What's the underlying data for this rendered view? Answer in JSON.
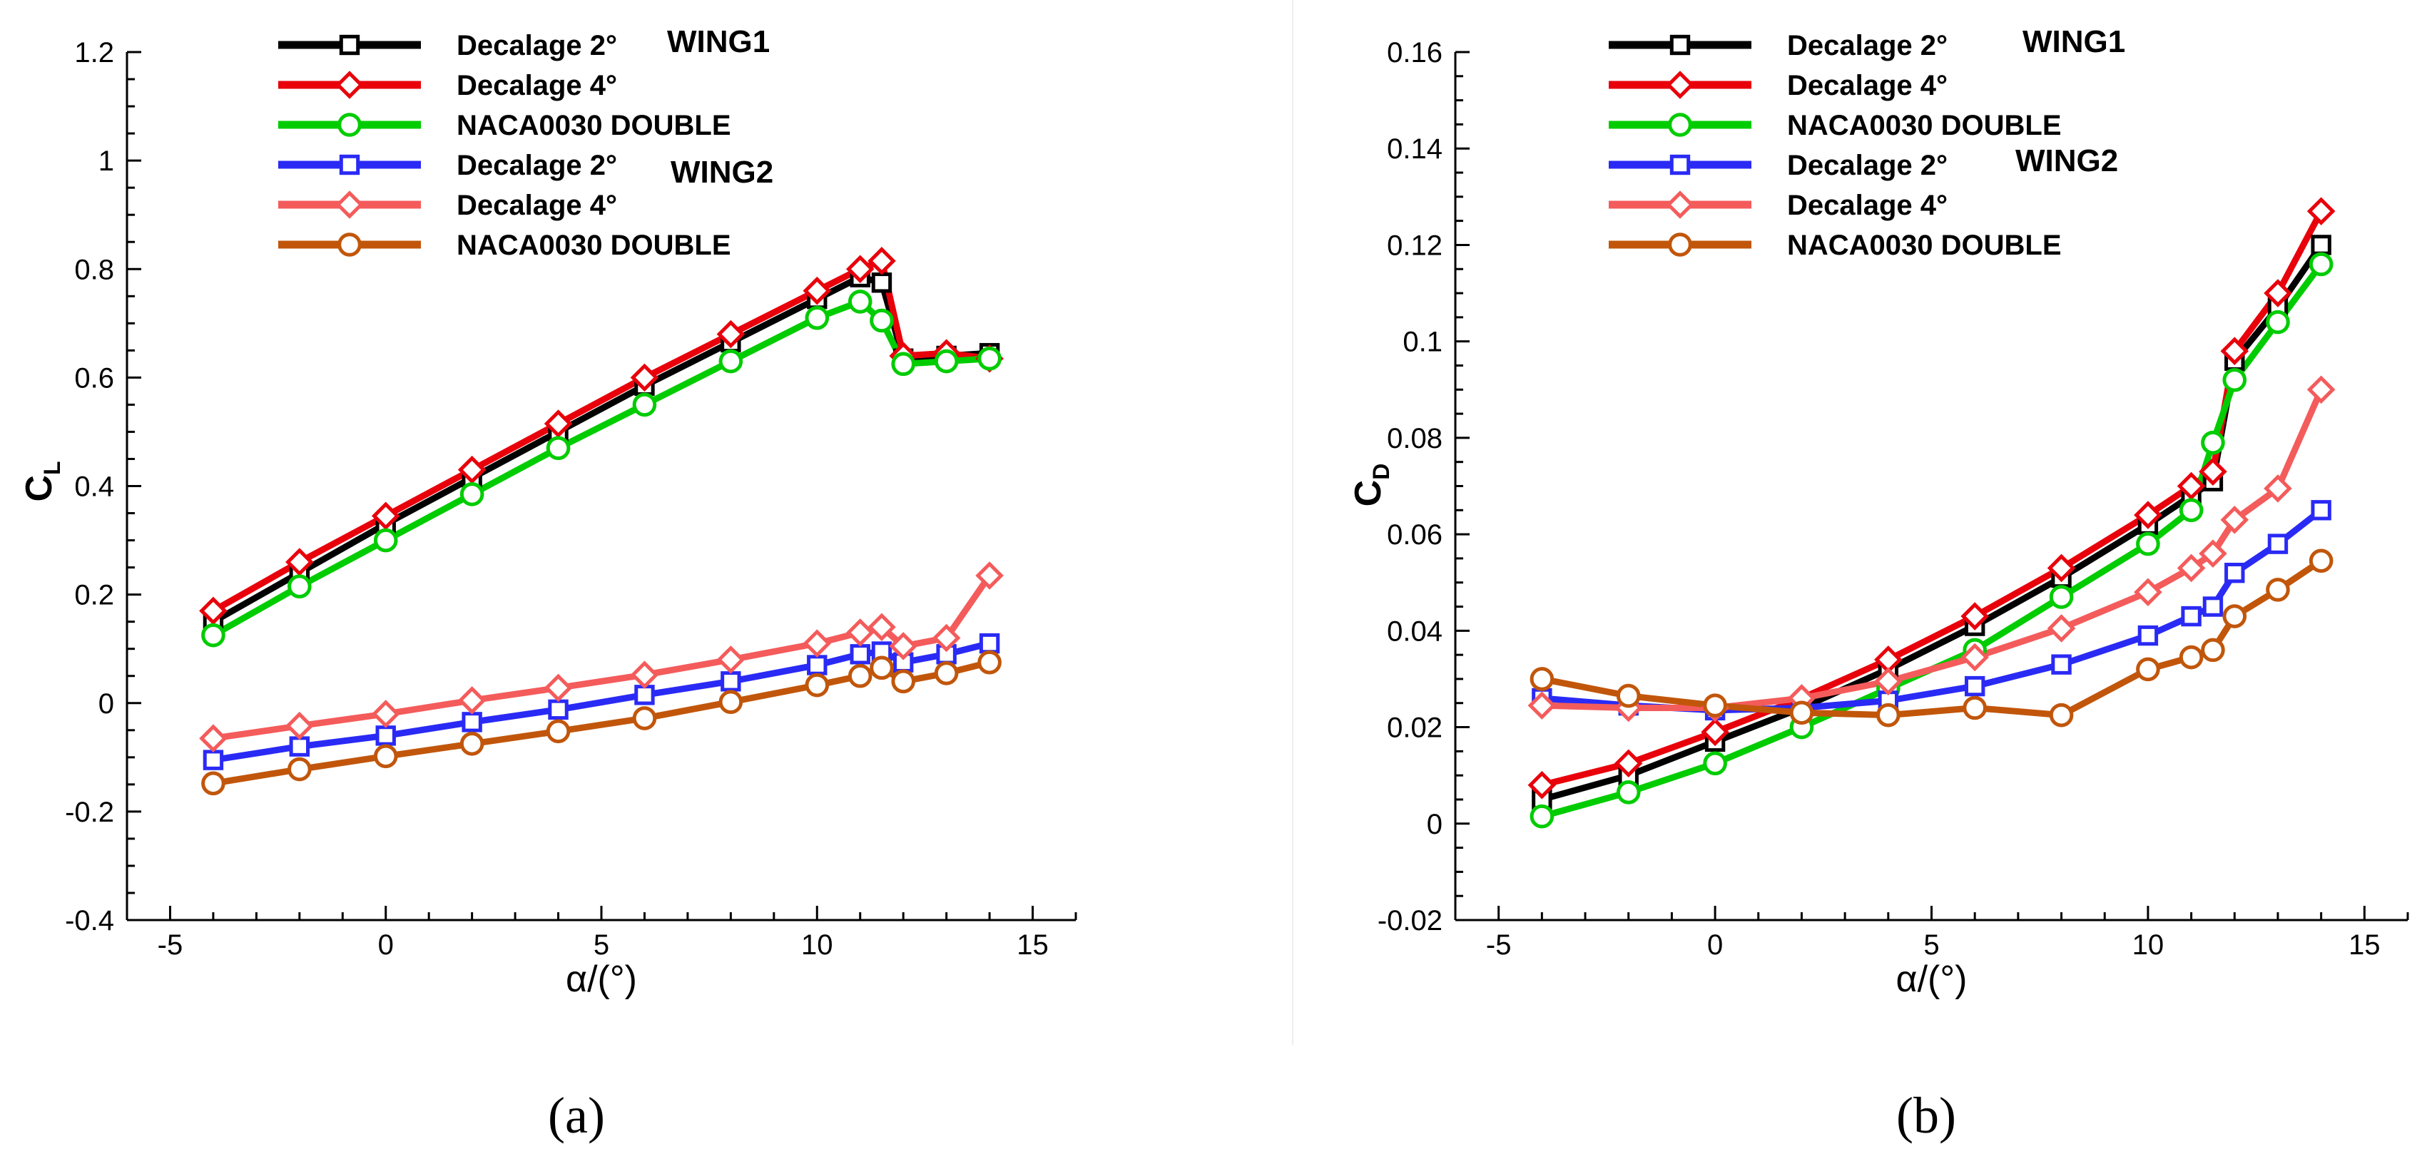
{
  "chart_data": [
    {
      "type": "line",
      "panel_label": "(a)",
      "ylabel": "C",
      "ylabel_sub": "L",
      "xlabel": "α/(°)",
      "xlim": [
        -6,
        16
      ],
      "ylim": [
        -0.4,
        1.2
      ],
      "xticks": [
        -5,
        0,
        5,
        10,
        15
      ],
      "yticks": [
        -0.4,
        -0.2,
        0,
        0.2,
        0.4,
        0.6,
        0.8,
        1,
        1.2
      ],
      "xtick_labels": [
        "-5",
        "0",
        "5",
        "10",
        "15"
      ],
      "ytick_labels": [
        "-0.4",
        "-0.2",
        "0",
        "0.2",
        "0.4",
        "0.6",
        "0.8",
        "1",
        "1.2"
      ],
      "group_labels": [
        "WING1",
        "WING2"
      ],
      "series": [
        {
          "name": "Decalage 2°",
          "group": "WING1",
          "color": "#000000",
          "marker": "square",
          "x": [
            -4,
            -2,
            0,
            2,
            4,
            6,
            8,
            10,
            11,
            11.5,
            12,
            13,
            14
          ],
          "y": [
            0.15,
            0.24,
            0.33,
            0.415,
            0.5,
            0.585,
            0.665,
            0.745,
            0.785,
            0.775,
            0.635,
            0.64,
            0.645
          ]
        },
        {
          "name": "Decalage 4°",
          "group": "WING1",
          "color": "#e8000b",
          "marker": "diamond",
          "x": [
            -4,
            -2,
            0,
            2,
            4,
            6,
            8,
            10,
            11,
            11.5,
            12,
            13,
            14
          ],
          "y": [
            0.17,
            0.26,
            0.345,
            0.43,
            0.515,
            0.6,
            0.68,
            0.76,
            0.8,
            0.815,
            0.64,
            0.645,
            0.635
          ]
        },
        {
          "name": "NACA0030 DOUBLE",
          "group": "WING1",
          "color": "#00cc00",
          "marker": "circle",
          "x": [
            -4,
            -2,
            0,
            2,
            4,
            6,
            8,
            10,
            11,
            11.5,
            12,
            13,
            14
          ],
          "y": [
            0.125,
            0.215,
            0.3,
            0.385,
            0.47,
            0.55,
            0.63,
            0.71,
            0.74,
            0.705,
            0.625,
            0.63,
            0.635
          ]
        },
        {
          "name": "Decalage 2°",
          "group": "WING2",
          "color": "#2a2af5",
          "marker": "square",
          "x": [
            -4,
            -2,
            0,
            2,
            4,
            6,
            8,
            10,
            11,
            11.5,
            12,
            13,
            14
          ],
          "y": [
            -0.105,
            -0.08,
            -0.06,
            -0.035,
            -0.012,
            0.015,
            0.04,
            0.07,
            0.09,
            0.095,
            0.075,
            0.09,
            0.11
          ]
        },
        {
          "name": "Decalage 4°",
          "group": "WING2",
          "color": "#f45b5b",
          "marker": "diamond",
          "x": [
            -4,
            -2,
            0,
            2,
            4,
            6,
            8,
            10,
            11,
            11.5,
            12,
            13,
            14
          ],
          "y": [
            -0.065,
            -0.042,
            -0.02,
            0.005,
            0.028,
            0.052,
            0.08,
            0.11,
            0.13,
            0.14,
            0.105,
            0.12,
            0.235
          ]
        },
        {
          "name": "NACA0030 DOUBLE",
          "group": "WING2",
          "color": "#c1560b",
          "marker": "circle",
          "x": [
            -4,
            -2,
            0,
            2,
            4,
            6,
            8,
            10,
            11,
            11.5,
            12,
            13,
            14
          ],
          "y": [
            -0.148,
            -0.122,
            -0.098,
            -0.075,
            -0.052,
            -0.028,
            0.002,
            0.033,
            0.05,
            0.065,
            0.04,
            0.055,
            0.075
          ]
        }
      ]
    },
    {
      "type": "line",
      "panel_label": "(b)",
      "ylabel": "C",
      "ylabel_sub": "D",
      "xlabel": "α/(°)",
      "xlim": [
        -6,
        16
      ],
      "ylim": [
        -0.02,
        0.16
      ],
      "xticks": [
        -5,
        0,
        5,
        10,
        15
      ],
      "yticks": [
        -0.02,
        0,
        0.02,
        0.04,
        0.06,
        0.08,
        0.1,
        0.12,
        0.14,
        0.16
      ],
      "xtick_labels": [
        "-5",
        "0",
        "5",
        "10",
        "15"
      ],
      "ytick_labels": [
        "-0.02",
        "0",
        "0.02",
        "0.04",
        "0.06",
        "0.08",
        "0.1",
        "0.12",
        "0.14",
        "0.16"
      ],
      "group_labels": [
        "WING1",
        "WING2"
      ],
      "series": [
        {
          "name": "Decalage 2°",
          "group": "WING1",
          "color": "#000000",
          "marker": "square",
          "x": [
            -4,
            -2,
            0,
            2,
            4,
            6,
            8,
            10,
            11,
            11.5,
            12,
            13,
            14
          ],
          "y": [
            0.005,
            0.01,
            0.017,
            0.024,
            0.032,
            0.041,
            0.051,
            0.062,
            0.068,
            0.071,
            0.096,
            0.107,
            0.12
          ]
        },
        {
          "name": "Decalage 4°",
          "group": "WING1",
          "color": "#e8000b",
          "marker": "diamond",
          "x": [
            -4,
            -2,
            0,
            2,
            4,
            6,
            8,
            10,
            11,
            11.5,
            12,
            13,
            14
          ],
          "y": [
            0.008,
            0.0125,
            0.019,
            0.026,
            0.034,
            0.043,
            0.053,
            0.064,
            0.07,
            0.073,
            0.098,
            0.11,
            0.127
          ]
        },
        {
          "name": "NACA0030 DOUBLE",
          "group": "WING1",
          "color": "#00cc00",
          "marker": "circle",
          "x": [
            -4,
            -2,
            0,
            2,
            4,
            6,
            8,
            10,
            11,
            11.5,
            12,
            13,
            14
          ],
          "y": [
            0.0015,
            0.0065,
            0.0125,
            0.02,
            0.028,
            0.036,
            0.047,
            0.058,
            0.065,
            0.079,
            0.092,
            0.104,
            0.116
          ]
        },
        {
          "name": "Decalage 2°",
          "group": "WING2",
          "color": "#2a2af5",
          "marker": "square",
          "x": [
            -4,
            -2,
            0,
            2,
            4,
            6,
            8,
            10,
            11,
            11.5,
            12,
            13,
            14
          ],
          "y": [
            0.026,
            0.0245,
            0.0235,
            0.024,
            0.0255,
            0.0285,
            0.033,
            0.039,
            0.043,
            0.045,
            0.052,
            0.058,
            0.065
          ]
        },
        {
          "name": "Decalage 4°",
          "group": "WING2",
          "color": "#f45b5b",
          "marker": "diamond",
          "x": [
            -4,
            -2,
            0,
            2,
            4,
            6,
            8,
            10,
            11,
            11.5,
            12,
            13,
            14
          ],
          "y": [
            0.0245,
            0.024,
            0.024,
            0.026,
            0.0295,
            0.0345,
            0.0405,
            0.048,
            0.053,
            0.056,
            0.063,
            0.0695,
            0.09
          ]
        },
        {
          "name": "NACA0030 DOUBLE",
          "group": "WING2",
          "color": "#c1560b",
          "marker": "circle",
          "x": [
            -4,
            -2,
            0,
            2,
            4,
            6,
            8,
            10,
            11,
            11.5,
            12,
            13,
            14
          ],
          "y": [
            0.03,
            0.0265,
            0.0245,
            0.023,
            0.0225,
            0.024,
            0.0225,
            0.032,
            0.0345,
            0.036,
            0.043,
            0.0485,
            0.0545
          ]
        }
      ]
    }
  ]
}
